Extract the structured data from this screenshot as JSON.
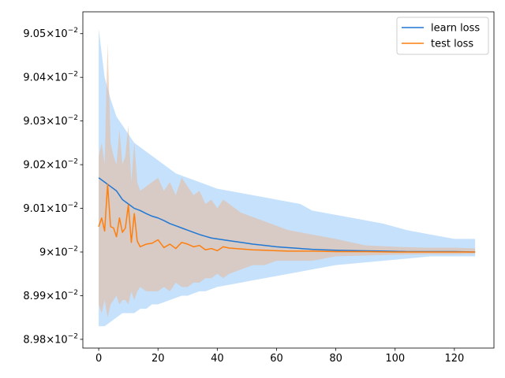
{
  "chart_data": {
    "type": "line",
    "title": "",
    "xlabel": "",
    "ylabel": "",
    "xlim": [
      -5.35,
      133.35
    ],
    "ylim": [
      0.08978,
      0.09055
    ],
    "grid": false,
    "legend_position": "top-right",
    "x_ticks": [
      0,
      20,
      40,
      60,
      80,
      100,
      120
    ],
    "x_tick_labels": [
      "0",
      "20",
      "40",
      "60",
      "80",
      "100",
      "120"
    ],
    "y_ticks": [
      0.0898,
      0.0899,
      0.09,
      0.0901,
      0.0902,
      0.0903,
      0.0904,
      0.0905
    ],
    "y_tick_labels": [
      {
        "mantissa": "8.98",
        "base": "10",
        "exp": "−2"
      },
      {
        "mantissa": "8.99",
        "base": "10",
        "exp": "−2"
      },
      {
        "mantissa": "9",
        "base": "10",
        "exp": "−2"
      },
      {
        "mantissa": "9.01",
        "base": "10",
        "exp": "−2"
      },
      {
        "mantissa": "9.02",
        "base": "10",
        "exp": "−2"
      },
      {
        "mantissa": "9.03",
        "base": "10",
        "exp": "−2"
      },
      {
        "mantissa": "9.04",
        "base": "10",
        "exp": "−2"
      },
      {
        "mantissa": "9.05",
        "base": "10",
        "exp": "−2"
      }
    ],
    "series": [
      {
        "name": "learn loss",
        "color": "#1f77d4",
        "band_color": "#b7d9fb",
        "x": [
          0,
          2,
          4,
          6,
          8,
          10,
          12,
          14,
          16,
          18,
          20,
          22,
          24,
          26,
          28,
          30,
          32,
          34,
          36,
          38,
          40,
          44,
          48,
          52,
          56,
          60,
          64,
          68,
          72,
          76,
          80,
          88,
          96,
          104,
          112,
          120,
          127
        ],
        "y": [
          0.09017,
          0.09016,
          0.09015,
          0.09014,
          0.09012,
          0.09011,
          0.0901,
          0.090095,
          0.090088,
          0.090082,
          0.090078,
          0.090072,
          0.090065,
          0.09006,
          0.090055,
          0.09005,
          0.090045,
          0.09004,
          0.090036,
          0.090032,
          0.09003,
          0.090026,
          0.090022,
          0.090018,
          0.090015,
          0.090012,
          0.09001,
          0.090008,
          0.090006,
          0.090005,
          0.090004,
          0.090003,
          0.090002,
          0.090001,
          0.090001,
          0.090001,
          0.09
        ],
        "upper": [
          0.09051,
          0.0904,
          0.09035,
          0.09031,
          0.09029,
          0.09027,
          0.09025,
          0.09024,
          0.09023,
          0.09022,
          0.09021,
          0.0902,
          0.09019,
          0.09018,
          0.090175,
          0.09017,
          0.090165,
          0.09016,
          0.090155,
          0.09015,
          0.090145,
          0.09014,
          0.090135,
          0.09013,
          0.090125,
          0.09012,
          0.090115,
          0.09011,
          0.090095,
          0.09009,
          0.090085,
          0.090075,
          0.090065,
          0.09005,
          0.09004,
          0.09003,
          0.09003
        ],
        "lower": [
          0.08983,
          0.08983,
          0.08984,
          0.08985,
          0.08986,
          0.08986,
          0.08986,
          0.08987,
          0.08987,
          0.08988,
          0.08988,
          0.089885,
          0.08989,
          0.089895,
          0.0899,
          0.0899,
          0.089905,
          0.08991,
          0.08991,
          0.089915,
          0.08992,
          0.089925,
          0.08993,
          0.089935,
          0.08994,
          0.089945,
          0.08995,
          0.089955,
          0.08996,
          0.089965,
          0.08997,
          0.089975,
          0.08998,
          0.089985,
          0.08999,
          0.08999,
          0.08999
        ]
      },
      {
        "name": "test loss",
        "color": "#ff7f0e",
        "band_color": "#e8b896",
        "x": [
          0,
          1,
          2,
          3,
          4,
          5,
          6,
          7,
          8,
          9,
          10,
          11,
          12,
          13,
          14,
          16,
          18,
          20,
          22,
          24,
          26,
          28,
          30,
          32,
          34,
          36,
          38,
          40,
          42,
          44,
          48,
          52,
          56,
          60,
          64,
          72,
          80,
          90,
          100,
          110,
          120,
          127
        ],
        "y": [
          0.090058,
          0.090078,
          0.090048,
          0.090155,
          0.090058,
          0.090055,
          0.090035,
          0.090078,
          0.090045,
          0.090055,
          0.090108,
          0.090022,
          0.090088,
          0.090025,
          0.090012,
          0.090018,
          0.09002,
          0.090028,
          0.09001,
          0.090018,
          0.090008,
          0.090022,
          0.090018,
          0.090012,
          0.090015,
          0.090005,
          0.090008,
          0.090003,
          0.090012,
          0.090009,
          0.090007,
          0.090005,
          0.090004,
          0.090003,
          0.090002,
          0.090002,
          0.090001,
          0.090001,
          0.09,
          0.09,
          0.09,
          0.09
        ],
        "upper": [
          0.09022,
          0.09025,
          0.0902,
          0.09048,
          0.09025,
          0.09022,
          0.0902,
          0.09028,
          0.0902,
          0.09022,
          0.09029,
          0.09016,
          0.09025,
          0.09016,
          0.09014,
          0.09015,
          0.09016,
          0.09017,
          0.09014,
          0.09016,
          0.09013,
          0.09017,
          0.09015,
          0.09013,
          0.09014,
          0.09011,
          0.09012,
          0.0901,
          0.09012,
          0.09011,
          0.09009,
          0.09008,
          0.09007,
          0.09006,
          0.09005,
          0.09004,
          0.09003,
          0.090015,
          0.090012,
          0.09001,
          0.09001,
          0.090008
        ],
        "lower": [
          0.08988,
          0.08986,
          0.08989,
          0.08985,
          0.08988,
          0.08989,
          0.0899,
          0.08988,
          0.08989,
          0.08989,
          0.08988,
          0.08991,
          0.08989,
          0.08991,
          0.08992,
          0.08991,
          0.08991,
          0.08991,
          0.08992,
          0.08991,
          0.08993,
          0.08992,
          0.08992,
          0.08993,
          0.08993,
          0.08994,
          0.08994,
          0.08995,
          0.08994,
          0.08995,
          0.08996,
          0.08997,
          0.08997,
          0.08998,
          0.08998,
          0.08998,
          0.08999,
          0.089992,
          0.089994,
          0.089995,
          0.089995,
          0.089996
        ]
      }
    ]
  }
}
